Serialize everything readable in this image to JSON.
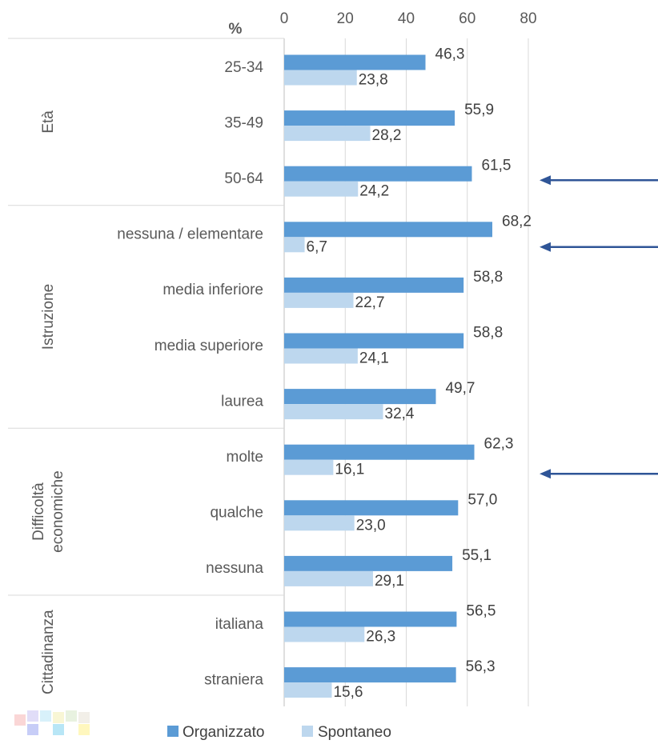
{
  "chart_data": {
    "type": "bar",
    "orientation": "horizontal",
    "unit_label": "%",
    "title": "",
    "xlabel": "",
    "ylabel": "",
    "xlim": [
      0,
      80
    ],
    "x_ticks": [
      "0",
      "20",
      "40",
      "60",
      "80"
    ],
    "x_tick_values": [
      0,
      20,
      40,
      60,
      80
    ],
    "grid": true,
    "legend_position": "bottom",
    "groups": [
      {
        "label": "Età",
        "categories": [
          "25-34",
          "35-49",
          "50-64"
        ]
      },
      {
        "label": "Istruzione",
        "categories": [
          "nessuna / elementare",
          "media inferiore",
          "media superiore",
          "laurea"
        ]
      },
      {
        "label": "Difficoltà economiche",
        "label_lines": [
          "Difficoltà",
          "economiche"
        ],
        "categories": [
          "molte",
          "qualche",
          "nessuna"
        ]
      },
      {
        "label": "Cittadinanza",
        "categories": [
          "italiana",
          "straniera"
        ]
      }
    ],
    "series": [
      {
        "name": "Organizzato",
        "color": "#5B9BD5",
        "values": [
          46.3,
          55.9,
          61.5,
          68.2,
          58.8,
          58.8,
          49.7,
          62.3,
          57.0,
          55.1,
          56.5,
          56.3
        ],
        "labels": [
          "46,3",
          "55,9",
          "61,5",
          "68,2",
          "58,8",
          "58,8",
          "49,7",
          "62,3",
          "57,0",
          "55,1",
          "56,5",
          "56,3"
        ]
      },
      {
        "name": "Spontaneo",
        "color": "#BDD7EE",
        "values": [
          23.8,
          28.2,
          24.2,
          6.7,
          22.7,
          24.1,
          32.4,
          16.1,
          23.0,
          29.1,
          26.3,
          15.6
        ],
        "labels": [
          "23,8",
          "28,2",
          "24,2",
          "6,7",
          "22,7",
          "24,1",
          "32,4",
          "16,1",
          "23,0",
          "29,1",
          "26,3",
          "15,6"
        ]
      }
    ],
    "annotations": [
      {
        "type": "arrow",
        "category": "50-64",
        "color": "#2F5597"
      },
      {
        "type": "arrow",
        "category": "nessuna / elementare",
        "color": "#2F5597"
      },
      {
        "type": "arrow",
        "category": "molte",
        "color": "#2F5597"
      }
    ]
  }
}
